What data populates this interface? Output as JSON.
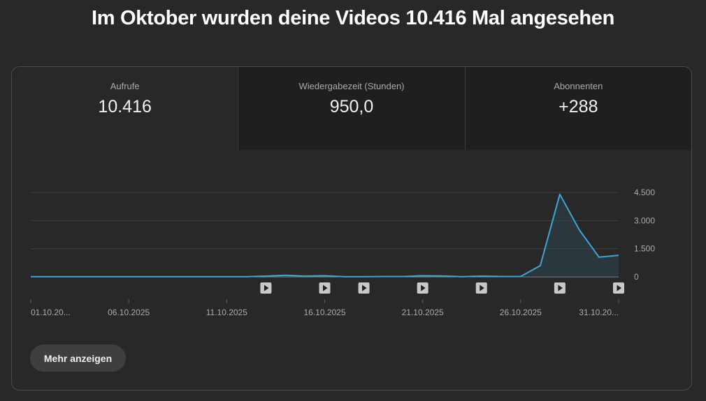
{
  "headline": "Im Oktober wurden deine Videos 10.416 Mal angesehen",
  "metrics": [
    {
      "label": "Aufrufe",
      "value": "10.416"
    },
    {
      "label": "Wiedergabezeit (Stunden)",
      "value": "950,0"
    },
    {
      "label": "Abonnenten",
      "value": "+288"
    }
  ],
  "more_button": "Mehr anzeigen",
  "colors": {
    "line": "#3ea6d6",
    "background": "#282828",
    "tab_inactive": "#1f1f1f"
  },
  "chart_data": {
    "type": "line",
    "title": "",
    "xlabel": "",
    "ylabel": "",
    "x": [
      "01.10.2025",
      "02.10.2025",
      "03.10.2025",
      "04.10.2025",
      "05.10.2025",
      "06.10.2025",
      "07.10.2025",
      "08.10.2025",
      "09.10.2025",
      "10.10.2025",
      "11.10.2025",
      "12.10.2025",
      "13.10.2025",
      "14.10.2025",
      "15.10.2025",
      "16.10.2025",
      "17.10.2025",
      "18.10.2025",
      "19.10.2025",
      "20.10.2025",
      "21.10.2025",
      "22.10.2025",
      "23.10.2025",
      "24.10.2025",
      "25.10.2025",
      "26.10.2025",
      "27.10.2025",
      "28.10.2025",
      "29.10.2025",
      "30.10.2025",
      "31.10.2025"
    ],
    "series": [
      {
        "values": [
          10,
          10,
          10,
          10,
          10,
          10,
          10,
          10,
          10,
          10,
          10,
          10,
          40,
          80,
          40,
          60,
          10,
          10,
          20,
          20,
          60,
          50,
          10,
          40,
          20,
          20,
          600,
          4400,
          2500,
          1050,
          1150
        ]
      }
    ],
    "tick_labels": [
      "01.10.20...",
      "06.10.2025",
      "11.10.2025",
      "16.10.2025",
      "21.10.2025",
      "26.10.2025",
      "31.10.20..."
    ],
    "tick_dates": [
      "01.10.2025",
      "06.10.2025",
      "11.10.2025",
      "16.10.2025",
      "21.10.2025",
      "26.10.2025",
      "31.10.2025"
    ],
    "y_ticks": [
      0,
      1500,
      3000,
      4500
    ],
    "y_tick_labels": [
      "0",
      "1.500",
      "3.000",
      "4.500"
    ],
    "ylim": [
      0,
      4500
    ],
    "video_markers": [
      "13.10.2025",
      "16.10.2025",
      "18.10.2025",
      "21.10.2025",
      "24.10.2025",
      "28.10.2025",
      "31.10.2025"
    ],
    "grid": true,
    "y_axis_position": "right"
  }
}
